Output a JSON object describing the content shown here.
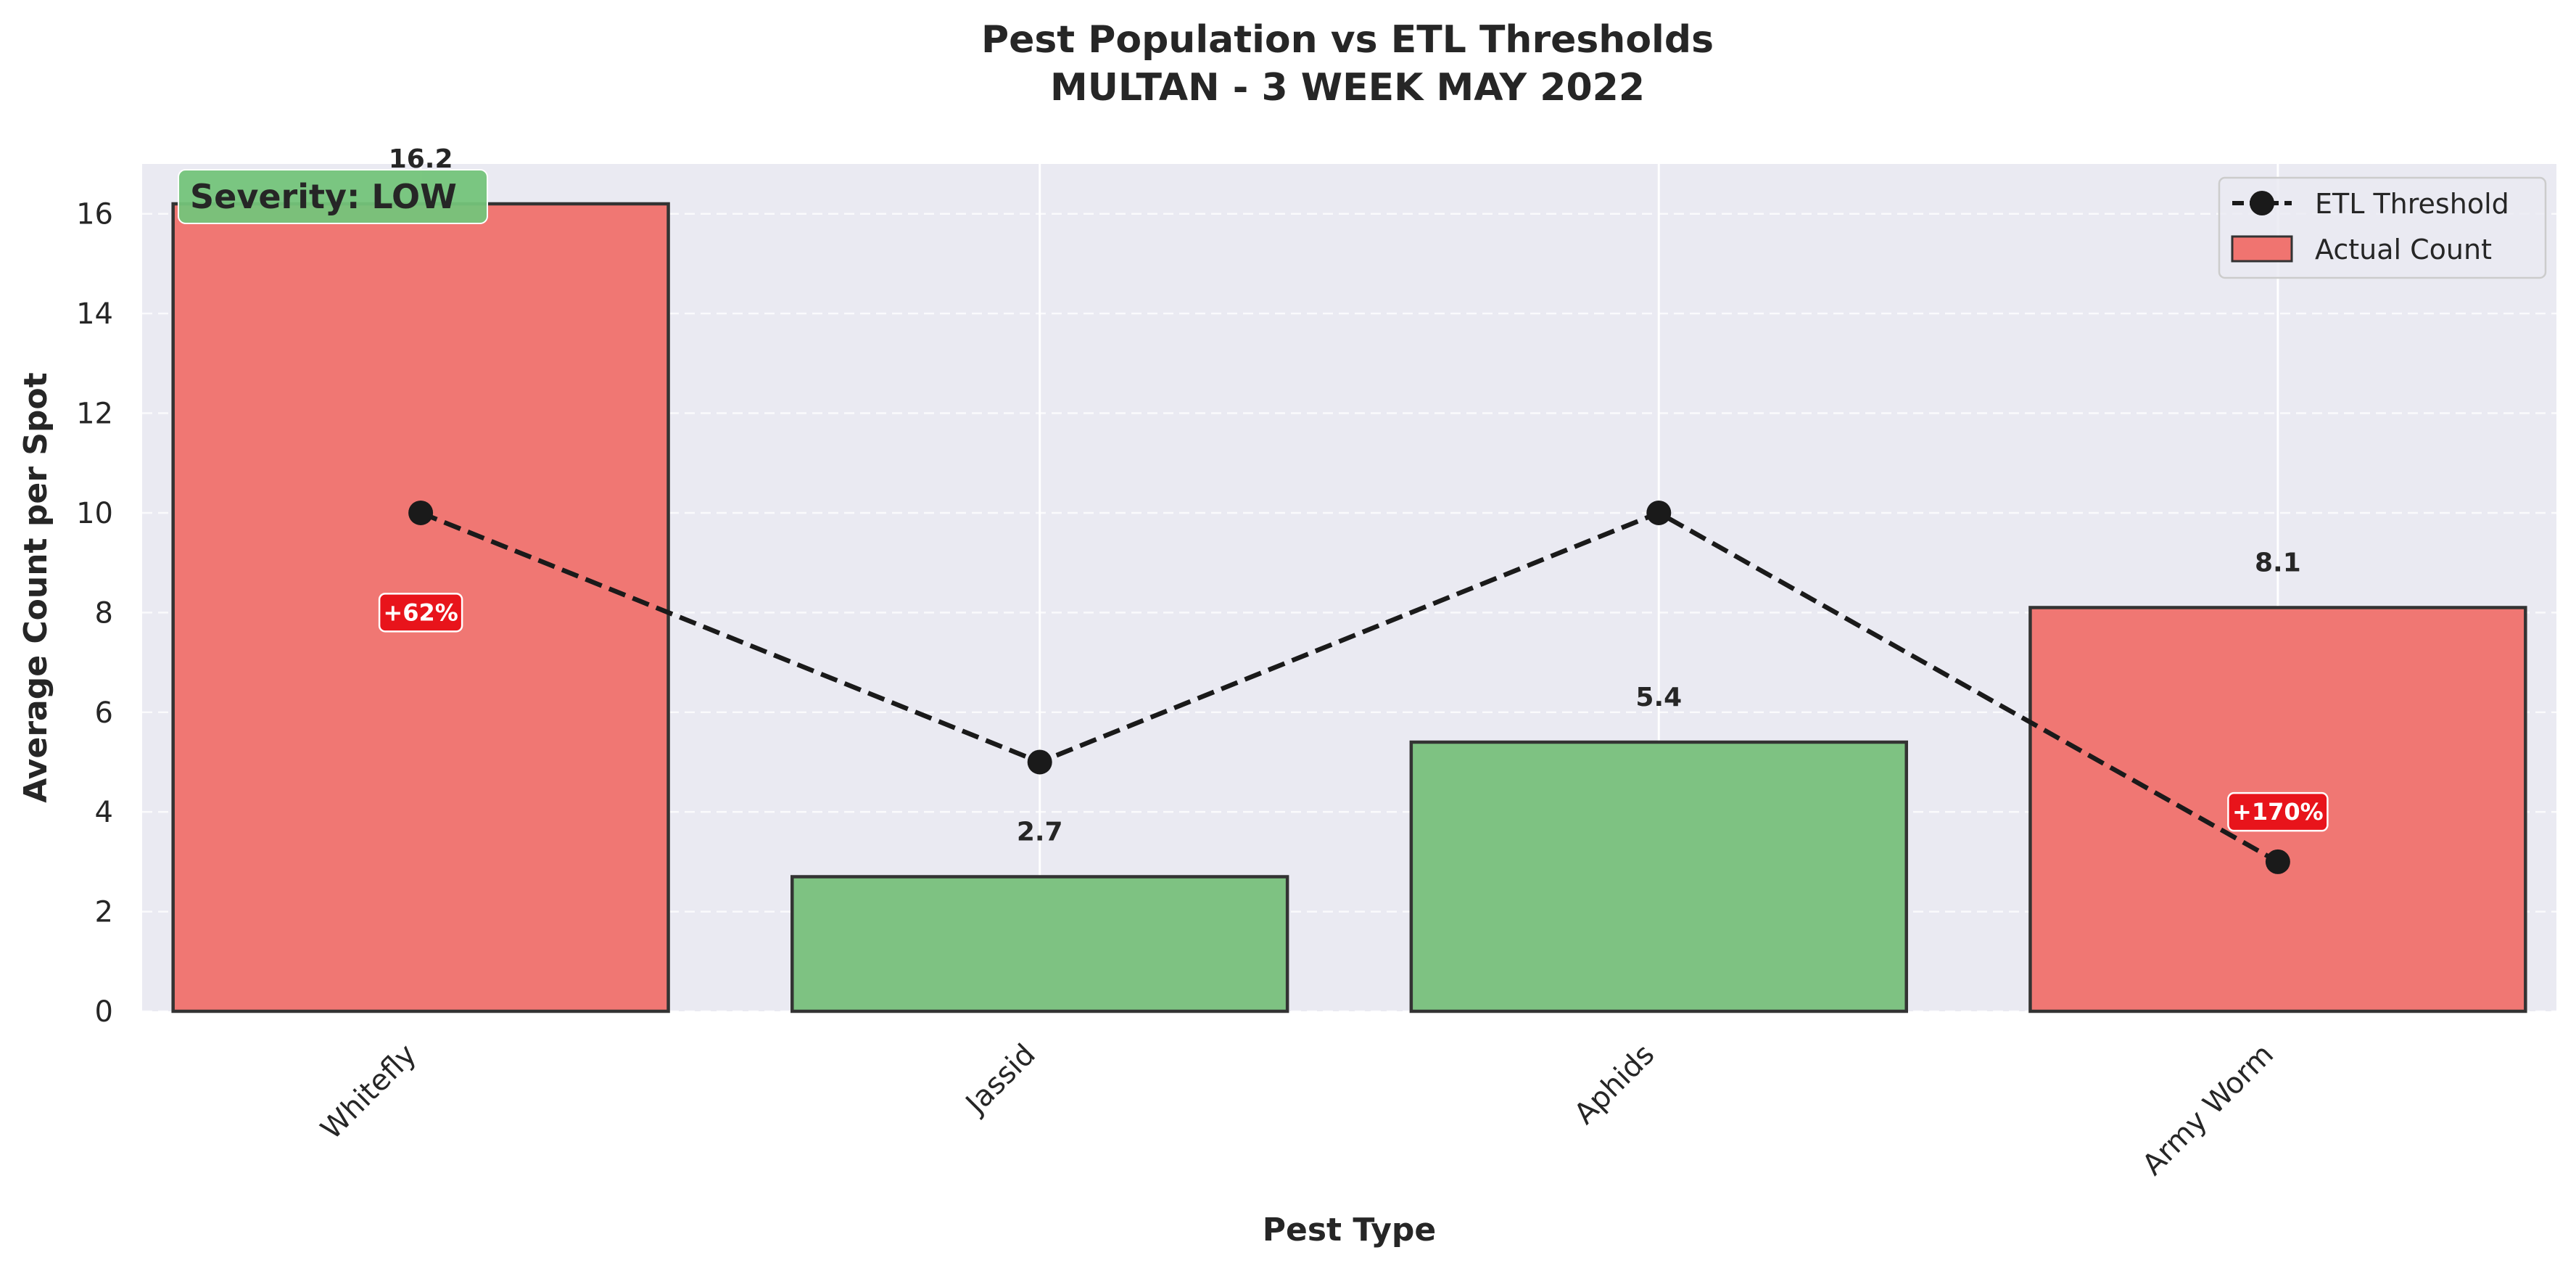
{
  "chart_data": {
    "type": "bar",
    "title": "Pest Population vs ETL Thresholds",
    "subtitle": "MULTAN - 3 WEEK MAY 2022",
    "xlabel": "Pest Type",
    "ylabel": "Average Count per Spot",
    "ylim": [
      0,
      17
    ],
    "yticks": [
      "0",
      "2",
      "4",
      "6",
      "8",
      "10",
      "12",
      "14",
      "16"
    ],
    "categories": [
      "Whitefly",
      "Jassid",
      "Aphids",
      "Army Worm"
    ],
    "series": [
      {
        "name": "Actual Count",
        "values": [
          16.2,
          2.7,
          5.4,
          8.1
        ],
        "labels": [
          "16.2",
          "2.7",
          "5.4",
          "8.1"
        ],
        "colors": [
          "#f07470",
          "#7bc17f",
          "#7bc17f",
          "#f07470"
        ]
      },
      {
        "name": "ETL Threshold",
        "values": [
          10,
          5,
          10,
          3
        ],
        "style": "dashed-line-with-markers",
        "color": "#1a1a1a"
      }
    ],
    "exceed_annotations": [
      {
        "category": "Whitefly",
        "label": "+62%",
        "y": 8
      },
      {
        "category": "Army Worm",
        "label": "+170%",
        "y": 4
      }
    ],
    "severity_badge": {
      "label": "Severity: LOW",
      "color": "#74c47a"
    },
    "grid": true,
    "legend_position": "top-right",
    "colors": {
      "background": "#eaeaf2",
      "above_threshold": "#f07470",
      "below_threshold": "#7bc17f",
      "annotation": "#e8141b",
      "threshold_line": "#1a1a1a"
    }
  }
}
